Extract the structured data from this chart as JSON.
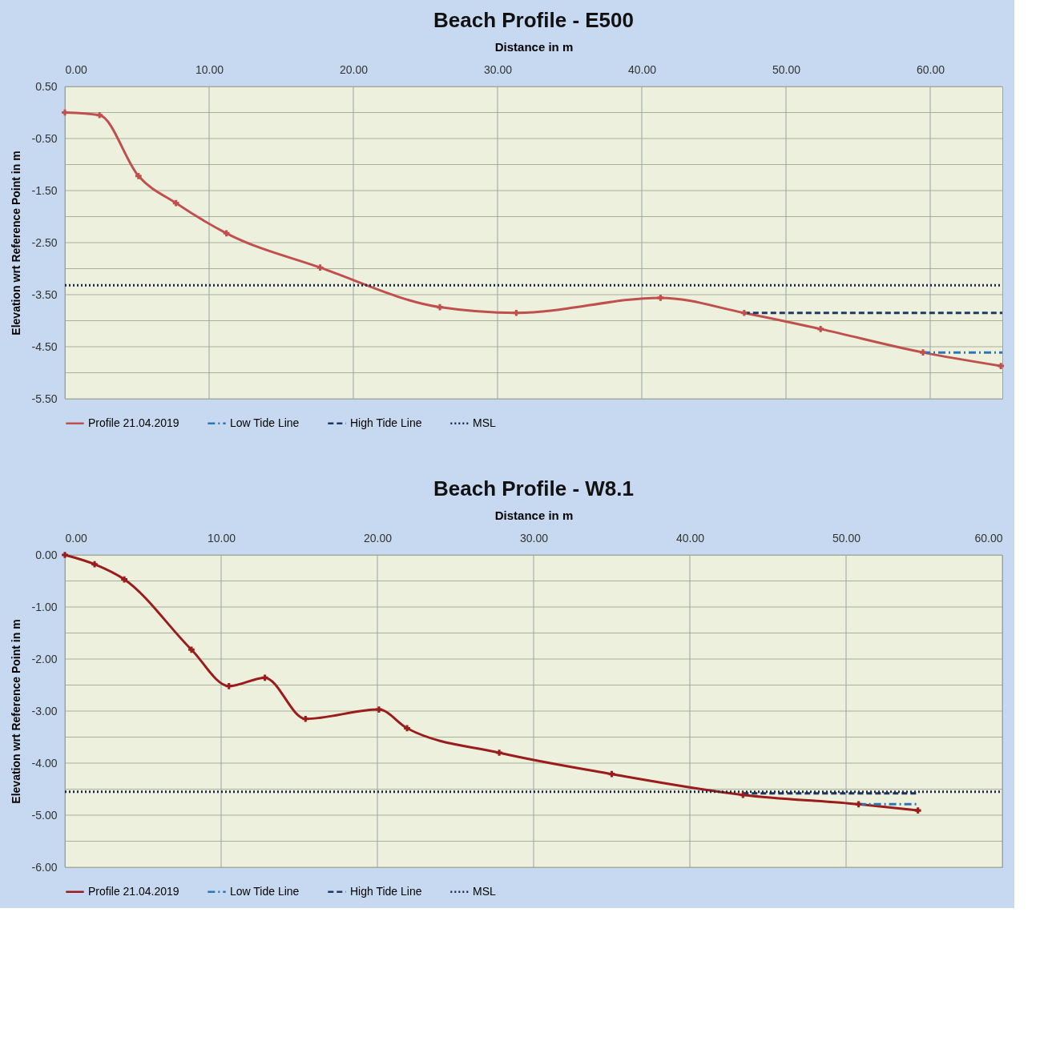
{
  "chart_data": [
    {
      "type": "line",
      "title": "Beach Profile - E500",
      "xlabel": "Distance in m",
      "ylabel": "Elevation wrt Reference Point in m",
      "xlim": [
        0,
        65
      ],
      "xticks": [
        {
          "value": 0,
          "label": "0.00"
        },
        {
          "value": 10,
          "label": "10.00"
        },
        {
          "value": 20,
          "label": "20.00"
        },
        {
          "value": 30,
          "label": "30.00"
        },
        {
          "value": 40,
          "label": "40.00"
        },
        {
          "value": 50,
          "label": "50.00"
        },
        {
          "value": 60,
          "label": "60.00"
        }
      ],
      "ylim": [
        -5.5,
        0.5
      ],
      "yticks": [
        {
          "value": 0.5,
          "label": "0.50"
        },
        {
          "value": 0,
          "label": null
        },
        {
          "value": -0.5,
          "label": "-0.50"
        },
        {
          "value": -1,
          "label": null
        },
        {
          "value": -1.5,
          "label": "-1.50"
        },
        {
          "value": -2,
          "label": null
        },
        {
          "value": -2.5,
          "label": "-2.50"
        },
        {
          "value": -3,
          "label": null
        },
        {
          "value": -3.5,
          "label": "-3.50"
        },
        {
          "value": -4,
          "label": null
        },
        {
          "value": -4.5,
          "label": "-4.50"
        },
        {
          "value": -5,
          "label": null
        },
        {
          "value": -5.5,
          "label": "-5.50"
        }
      ],
      "grid": true,
      "legend": "bottom",
      "series": [
        {
          "name": "Profile 21.04.2019",
          "color": "#c0504d",
          "line_style": "solid",
          "marker": "cross",
          "x": [
            0,
            2.4,
            5.1,
            7.7,
            11.2,
            17.7,
            26.0,
            31.3,
            41.3,
            47.1,
            52.4,
            59.5,
            64.9
          ],
          "values": [
            0.0,
            -0.05,
            -1.22,
            -1.74,
            -2.32,
            -2.98,
            -3.74,
            -3.85,
            -3.56,
            -3.85,
            -4.16,
            -4.61,
            -4.87
          ]
        },
        {
          "name": "Low Tide Line",
          "color": "#2e75b6",
          "line_style": "dashdot",
          "marker": "none",
          "x": [
            59.5,
            65
          ],
          "values": [
            -4.61,
            -4.61
          ]
        },
        {
          "name": "High Tide Line",
          "color": "#1f3864",
          "line_style": "dashed",
          "marker": "none",
          "x": [
            47.1,
            65
          ],
          "values": [
            -3.85,
            -3.85
          ]
        },
        {
          "name": "MSL",
          "color": "#17284a",
          "line_style": "dotted",
          "marker": "none",
          "x": [
            0,
            65
          ],
          "values": [
            -3.32,
            -3.32
          ]
        }
      ]
    },
    {
      "type": "line",
      "title": "Beach Profile - W8.1",
      "xlabel": "Distance in m",
      "ylabel": "Elevation wrt Reference Point in m",
      "xlim": [
        0,
        60
      ],
      "xticks": [
        {
          "value": 0,
          "label": "0.00"
        },
        {
          "value": 10,
          "label": "10.00"
        },
        {
          "value": 20,
          "label": "20.00"
        },
        {
          "value": 30,
          "label": "30.00"
        },
        {
          "value": 40,
          "label": "40.00"
        },
        {
          "value": 50,
          "label": "50.00"
        },
        {
          "value": 60,
          "label": "60.00"
        }
      ],
      "ylim": [
        -6,
        0
      ],
      "yticks": [
        {
          "value": 0,
          "label": "0.00"
        },
        {
          "value": -0.5,
          "label": null
        },
        {
          "value": -1,
          "label": "-1.00"
        },
        {
          "value": -1.5,
          "label": null
        },
        {
          "value": -2,
          "label": "-2.00"
        },
        {
          "value": -2.5,
          "label": null
        },
        {
          "value": -3,
          "label": "-3.00"
        },
        {
          "value": -3.5,
          "label": null
        },
        {
          "value": -4,
          "label": "-4.00"
        },
        {
          "value": -4.5,
          "label": null
        },
        {
          "value": -5,
          "label": "-5.00"
        },
        {
          "value": -5.5,
          "label": null
        },
        {
          "value": -6,
          "label": "-6.00"
        }
      ],
      "grid": true,
      "legend": "bottom",
      "series": [
        {
          "name": "Profile 21.04.2019",
          "color": "#9b1c1c",
          "line_style": "solid",
          "marker": "cross",
          "x": [
            0,
            1.9,
            3.8,
            8.1,
            10.5,
            12.8,
            15.4,
            20.1,
            21.9,
            27.8,
            35.0,
            43.4,
            50.8,
            54.6
          ],
          "values": [
            0.0,
            -0.18,
            -0.47,
            -1.82,
            -2.52,
            -2.36,
            -3.15,
            -2.97,
            -3.33,
            -3.8,
            -4.21,
            -4.61,
            -4.79,
            -4.91
          ]
        },
        {
          "name": "Low Tide Line",
          "color": "#2e75b6",
          "line_style": "dashdot",
          "marker": "none",
          "x": [
            50.8,
            54.6
          ],
          "values": [
            -4.79,
            -4.79
          ]
        },
        {
          "name": "High Tide Line",
          "color": "#1f3864",
          "line_style": "dashed",
          "marker": "none",
          "x": [
            43.4,
            54.6
          ],
          "values": [
            -4.58,
            -4.58
          ]
        },
        {
          "name": "MSL",
          "color": "#17284a",
          "line_style": "dotted",
          "marker": "none",
          "x": [
            0,
            60
          ],
          "values": [
            -4.55,
            -4.55
          ]
        }
      ]
    }
  ]
}
